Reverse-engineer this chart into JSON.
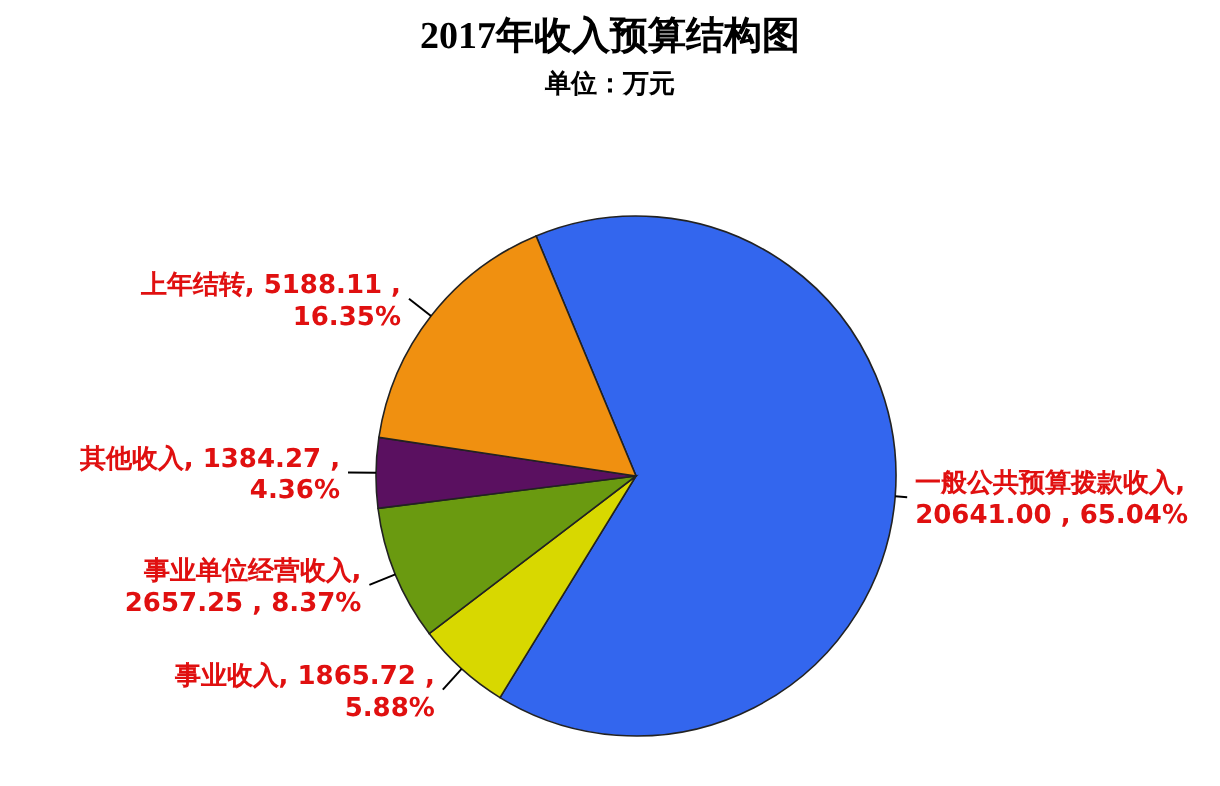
{
  "chart_data": {
    "type": "pie",
    "title": "2017年收入预算结构图",
    "subtitle": "单位：万元",
    "categories": [
      "一般公共预算拨款收入",
      "事业收入",
      "事业单位经营收入",
      "其他收入",
      "上年结转"
    ],
    "values": [
      20641.0,
      1865.72,
      2657.25,
      1384.27,
      5188.11
    ],
    "colors": [
      "#3366ee",
      "#d8d800",
      "#6a9a10",
      "#5a1060",
      "#f09010"
    ],
    "value_labels": [
      ", 20641.00 , 65.04%",
      ", 1865.72 , 5.88%",
      ", 2657.25 , 8.37%",
      ", 1384.27 , 4.36%",
      ", 5188.11 , 16.35%"
    ]
  }
}
